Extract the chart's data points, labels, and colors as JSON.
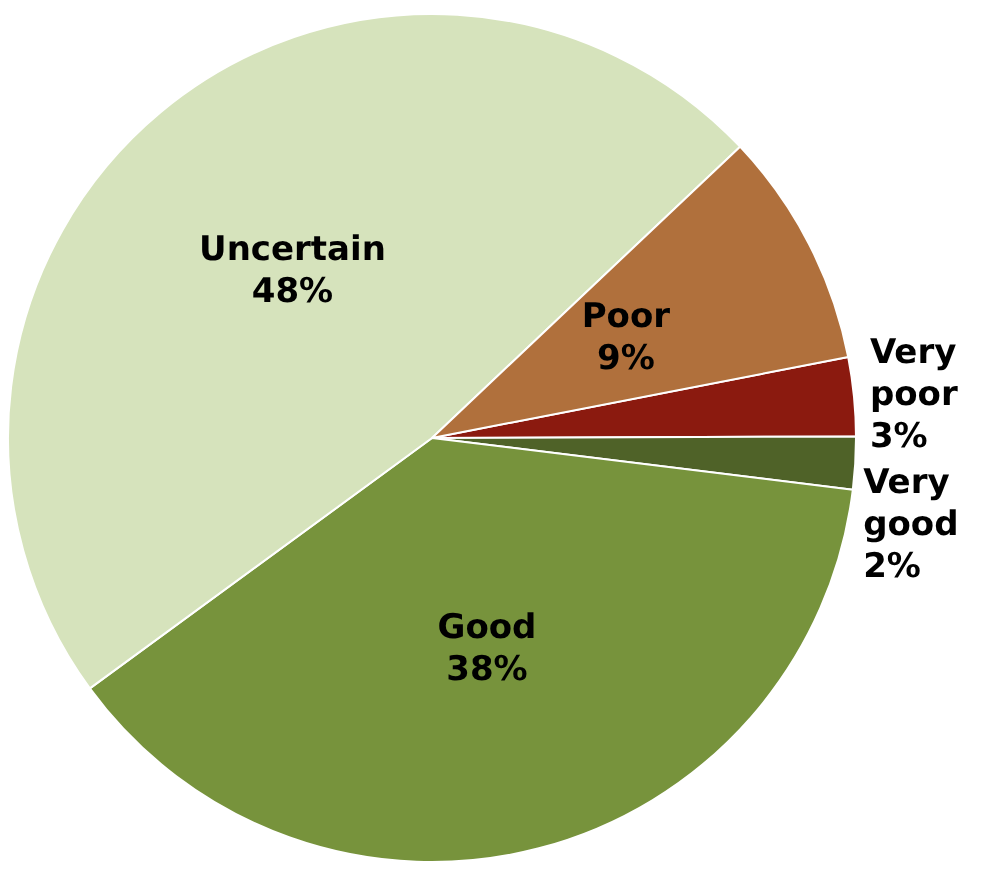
{
  "chart_data": {
    "type": "pie",
    "categories": [
      "Very poor",
      "Very good",
      "Good",
      "Uncertain",
      "Poor"
    ],
    "values": [
      3,
      2,
      38,
      48,
      9
    ],
    "colors": [
      "#8b1a0f",
      "#4f6228",
      "#77933c",
      "#d6e3bc",
      "#b0703c"
    ],
    "value_labels": [
      "3%",
      "2%",
      "38%",
      "48%",
      "9%"
    ],
    "legend": false
  }
}
